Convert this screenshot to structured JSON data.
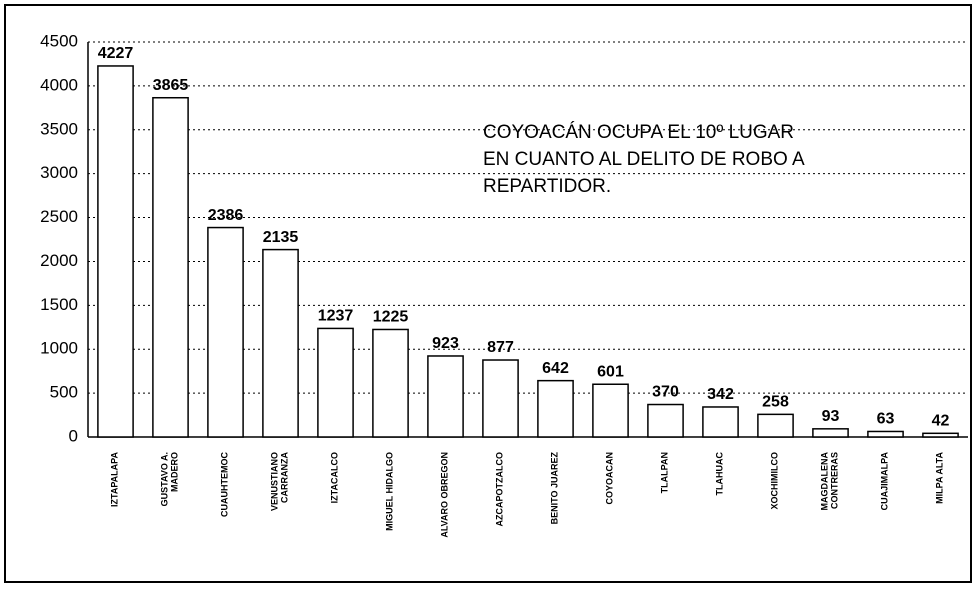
{
  "chart_data": {
    "type": "bar",
    "categories": [
      "IZTAPALAPA",
      "GUSTAVO A.\nMADERO",
      "CUAUHTEMOC",
      "VENUSTIANO\nCARRANZA",
      "IZTACALCO",
      "MIGUEL HIDALGO",
      "ALVARO OBREGON",
      "AZCAPOTZALCO",
      "BENITO JUAREZ",
      "COYOACAN",
      "TLALPAN",
      "TLAHUAC",
      "XOCHIMILCO",
      "MAGDALENA\nCONTRERAS",
      "CUAJIMALPA",
      "MILPA ALTA"
    ],
    "values": [
      4227,
      3865,
      2386,
      2135,
      1237,
      1225,
      923,
      877,
      642,
      601,
      370,
      342,
      258,
      93,
      63,
      42
    ],
    "color": "#ffffff",
    "ylim": [
      0,
      4500
    ],
    "yticks": [
      0,
      500,
      1000,
      1500,
      2000,
      2500,
      3000,
      3500,
      4000,
      4500
    ],
    "grid": true,
    "annotation": [
      "COYOACÁN OCUPA EL 10º LUGAR",
      "EN CUANTO AL DELITO DE ROBO A",
      "REPARTIDOR."
    ]
  }
}
